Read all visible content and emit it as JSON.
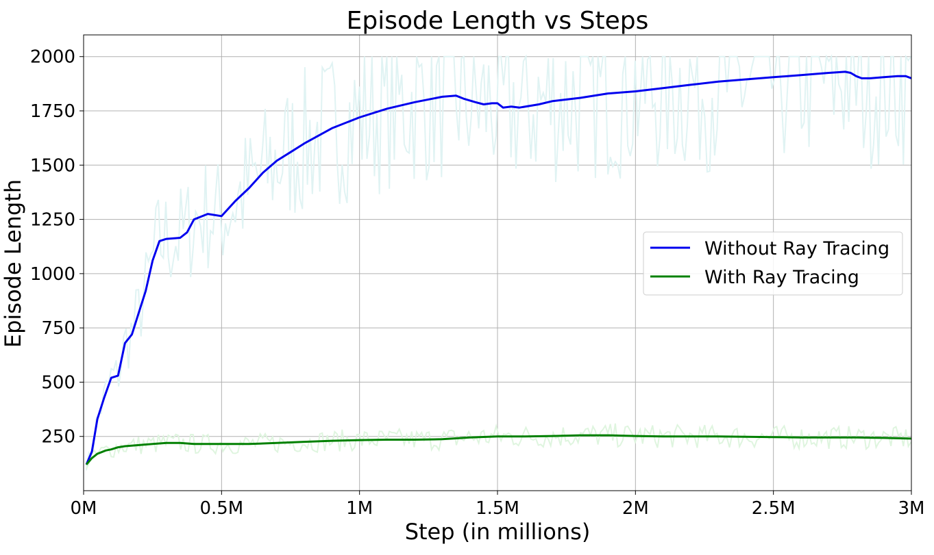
{
  "chart_data": {
    "type": "line",
    "title": "Episode Length vs Steps",
    "xlabel": "Step (in millions)",
    "ylabel": "Episode Length",
    "xlim": [
      0,
      3000000
    ],
    "ylim": [
      0,
      2100
    ],
    "x_ticks": [
      {
        "value": 0,
        "label": "0M"
      },
      {
        "value": 500000,
        "label": "0.5M"
      },
      {
        "value": 1000000,
        "label": "1M"
      },
      {
        "value": 1500000,
        "label": "1.5M"
      },
      {
        "value": 2000000,
        "label": "2M"
      },
      {
        "value": 2500000,
        "label": "2.5M"
      },
      {
        "value": 3000000,
        "label": "3M"
      }
    ],
    "y_ticks": [
      {
        "value": 250,
        "label": "250"
      },
      {
        "value": 500,
        "label": "500"
      },
      {
        "value": 750,
        "label": "750"
      },
      {
        "value": 1000,
        "label": "1000"
      },
      {
        "value": 1250,
        "label": "1250"
      },
      {
        "value": 1500,
        "label": "1500"
      },
      {
        "value": 1750,
        "label": "1750"
      },
      {
        "value": 2000,
        "label": "2000"
      }
    ],
    "grid": true,
    "legend_position": "center-right",
    "series": [
      {
        "name": "Without Ray Tracing",
        "color": "#0000ee",
        "raw_color": "#e0f3f3",
        "x": [
          10000,
          30000,
          50000,
          75000,
          100000,
          125000,
          150000,
          175000,
          200000,
          225000,
          250000,
          275000,
          300000,
          350000,
          375000,
          400000,
          450000,
          500000,
          550000,
          600000,
          650000,
          700000,
          750000,
          800000,
          900000,
          1000000,
          1100000,
          1200000,
          1300000,
          1350000,
          1380000,
          1420000,
          1450000,
          1480000,
          1500000,
          1520000,
          1550000,
          1580000,
          1650000,
          1700000,
          1800000,
          1900000,
          2000000,
          2100000,
          2200000,
          2300000,
          2400000,
          2500000,
          2600000,
          2700000,
          2760000,
          2780000,
          2800000,
          2820000,
          2850000,
          2900000,
          2950000,
          2980000,
          3000000
        ],
        "y": [
          120,
          180,
          330,
          430,
          520,
          530,
          680,
          720,
          820,
          920,
          1060,
          1150,
          1160,
          1165,
          1190,
          1250,
          1275,
          1265,
          1335,
          1395,
          1465,
          1520,
          1560,
          1600,
          1670,
          1720,
          1760,
          1790,
          1815,
          1820,
          1805,
          1790,
          1780,
          1785,
          1785,
          1765,
          1770,
          1765,
          1780,
          1795,
          1810,
          1830,
          1840,
          1855,
          1870,
          1885,
          1895,
          1905,
          1915,
          1925,
          1930,
          1925,
          1910,
          1900,
          1900,
          1905,
          1910,
          1910,
          1900
        ]
      },
      {
        "name": "With Ray Tracing",
        "color": "#008000",
        "raw_color": "#dff5df",
        "x": [
          10000,
          30000,
          50000,
          80000,
          100000,
          125000,
          150000,
          200000,
          250000,
          300000,
          350000,
          400000,
          450000,
          500000,
          550000,
          600000,
          700000,
          800000,
          900000,
          1000000,
          1100000,
          1200000,
          1300000,
          1400000,
          1500000,
          1600000,
          1700000,
          1800000,
          1900000,
          2000000,
          2100000,
          2200000,
          2300000,
          2400000,
          2500000,
          2600000,
          2700000,
          2800000,
          2900000,
          3000000
        ],
        "y": [
          120,
          150,
          170,
          185,
          190,
          200,
          205,
          210,
          215,
          220,
          220,
          215,
          215,
          215,
          215,
          215,
          220,
          225,
          230,
          233,
          235,
          235,
          237,
          245,
          250,
          250,
          252,
          255,
          255,
          252,
          250,
          250,
          250,
          248,
          247,
          245,
          245,
          245,
          243,
          240
        ]
      }
    ]
  }
}
